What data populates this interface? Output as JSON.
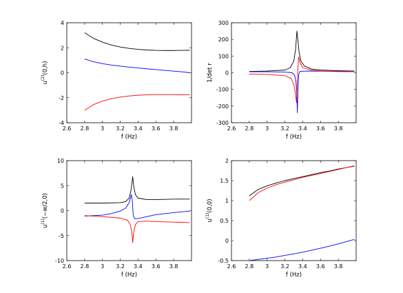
{
  "chart_data": [
    {
      "type": "line",
      "xlabel": "f (Hz)",
      "ylabel": "u^{(2)}(0,h)",
      "ylabel_parts": {
        "base": "u",
        "sup": "(2)",
        "rest": "(0,h)"
      },
      "xlim": [
        2.6,
        4.0
      ],
      "ylim": [
        -4,
        4
      ],
      "xticks": [
        "2.6",
        "2.8",
        "3",
        "3.2",
        "3.4",
        "3.6",
        "3.8"
      ],
      "xtick_values": [
        2.6,
        2.8,
        3.0,
        3.2,
        3.4,
        3.6,
        3.8
      ],
      "yticks": [
        "-4",
        "-2",
        "0",
        "2",
        "4"
      ],
      "ytick_values": [
        -4,
        -2,
        0,
        2,
        4
      ],
      "series": [
        {
          "color": "#000000",
          "points": [
            [
              2.8,
              3.2
            ],
            [
              2.9,
              2.75
            ],
            [
              3.0,
              2.45
            ],
            [
              3.1,
              2.22
            ],
            [
              3.2,
              2.06
            ],
            [
              3.3,
              1.95
            ],
            [
              3.4,
              1.87
            ],
            [
              3.5,
              1.82
            ],
            [
              3.6,
              1.79
            ],
            [
              3.7,
              1.78
            ],
            [
              3.8,
              1.78
            ],
            [
              3.9,
              1.79
            ],
            [
              3.98,
              1.8
            ]
          ]
        },
        {
          "color": "#0000ff",
          "points": [
            [
              2.8,
              1.1
            ],
            [
              2.9,
              0.88
            ],
            [
              3.0,
              0.73
            ],
            [
              3.1,
              0.62
            ],
            [
              3.2,
              0.53
            ],
            [
              3.3,
              0.45
            ],
            [
              3.4,
              0.38
            ],
            [
              3.5,
              0.31
            ],
            [
              3.6,
              0.25
            ],
            [
              3.7,
              0.19
            ],
            [
              3.8,
              0.13
            ],
            [
              3.9,
              0.07
            ],
            [
              3.98,
              0.0
            ]
          ]
        },
        {
          "color": "#ff0000",
          "points": [
            [
              2.8,
              -3.0
            ],
            [
              2.9,
              -2.55
            ],
            [
              3.0,
              -2.27
            ],
            [
              3.1,
              -2.08
            ],
            [
              3.2,
              -1.95
            ],
            [
              3.3,
              -1.86
            ],
            [
              3.4,
              -1.8
            ],
            [
              3.5,
              -1.77
            ],
            [
              3.6,
              -1.75
            ],
            [
              3.7,
              -1.75
            ],
            [
              3.8,
              -1.75
            ],
            [
              3.9,
              -1.76
            ],
            [
              3.98,
              -1.77
            ]
          ]
        }
      ]
    },
    {
      "type": "line",
      "xlabel": "f (Hz)",
      "ylabel": "1/det r",
      "ylabel_parts": {
        "base": "1/det r",
        "sup": "",
        "rest": ""
      },
      "xlim": [
        2.6,
        4.0
      ],
      "ylim": [
        -300,
        300
      ],
      "xticks": [
        "2.6",
        "2.8",
        "3",
        "3.2",
        "3.4",
        "3.6",
        "3.8"
      ],
      "xtick_values": [
        2.6,
        2.8,
        3.0,
        3.2,
        3.4,
        3.6,
        3.8
      ],
      "yticks": [
        "-300",
        "-200",
        "-100",
        "0",
        "100",
        "200",
        "300"
      ],
      "ytick_values": [
        -300,
        -200,
        -100,
        0,
        100,
        200,
        300
      ],
      "series": [
        {
          "color": "#000000",
          "points": [
            [
              2.8,
              8
            ],
            [
              3.0,
              10
            ],
            [
              3.2,
              16
            ],
            [
              3.26,
              30
            ],
            [
              3.3,
              70
            ],
            [
              3.32,
              140
            ],
            [
              3.335,
              250
            ],
            [
              3.345,
              200
            ],
            [
              3.36,
              120
            ],
            [
              3.38,
              70
            ],
            [
              3.42,
              40
            ],
            [
              3.5,
              22
            ],
            [
              3.6,
              16
            ],
            [
              3.8,
              12
            ],
            [
              3.98,
              10
            ]
          ]
        },
        {
          "color": "#0000ff",
          "points": [
            [
              2.8,
              6
            ],
            [
              3.0,
              6
            ],
            [
              3.2,
              4
            ],
            [
              3.28,
              0
            ],
            [
              3.31,
              -15
            ],
            [
              3.325,
              -60
            ],
            [
              3.335,
              -150
            ],
            [
              3.34,
              -240
            ],
            [
              3.345,
              -120
            ],
            [
              3.355,
              -10
            ],
            [
              3.37,
              8
            ],
            [
              3.45,
              10
            ],
            [
              3.6,
              9
            ],
            [
              3.8,
              9
            ],
            [
              3.98,
              9
            ]
          ]
        },
        {
          "color": "#ff0000",
          "points": [
            [
              2.8,
              -8
            ],
            [
              3.0,
              -10
            ],
            [
              3.2,
              -18
            ],
            [
              3.27,
              -35
            ],
            [
              3.3,
              -70
            ],
            [
              3.32,
              -130
            ],
            [
              3.33,
              -180
            ],
            [
              3.337,
              -80
            ],
            [
              3.345,
              20
            ],
            [
              3.355,
              95
            ],
            [
              3.37,
              60
            ],
            [
              3.4,
              30
            ],
            [
              3.5,
              15
            ],
            [
              3.6,
              10
            ],
            [
              3.8,
              7
            ],
            [
              3.98,
              6
            ]
          ]
        }
      ]
    },
    {
      "type": "line",
      "xlabel": "f (Hz)",
      "ylabel": "u^{(1)}(-w/2,0)",
      "ylabel_parts": {
        "base": "u",
        "sup": "(1)",
        "rest": "(−w/2,0)"
      },
      "xlim": [
        2.6,
        4.0
      ],
      "ylim": [
        -10,
        10
      ],
      "xticks": [
        "2.6",
        "2.8",
        "3",
        "3.2",
        "3.4",
        "3.6",
        "3.8"
      ],
      "xtick_values": [
        2.6,
        2.8,
        3.0,
        3.2,
        3.4,
        3.6,
        3.8
      ],
      "yticks": [
        "-10",
        "-5",
        "0",
        "5",
        "10"
      ],
      "ytick_values": [
        -10,
        -5,
        0,
        5,
        10
      ],
      "series": [
        {
          "color": "#000000",
          "points": [
            [
              2.8,
              1.5
            ],
            [
              3.0,
              1.5
            ],
            [
              3.2,
              1.6
            ],
            [
              3.26,
              1.8
            ],
            [
              3.3,
              2.5
            ],
            [
              3.32,
              4.0
            ],
            [
              3.34,
              6.8
            ],
            [
              3.35,
              5.0
            ],
            [
              3.37,
              3.2
            ],
            [
              3.4,
              2.5
            ],
            [
              3.5,
              2.2
            ],
            [
              3.6,
              2.2
            ],
            [
              3.8,
              2.3
            ],
            [
              3.98,
              2.3
            ]
          ]
        },
        {
          "color": "#0000ff",
          "points": [
            [
              2.8,
              -1.1
            ],
            [
              3.0,
              -0.9
            ],
            [
              3.1,
              -0.6
            ],
            [
              3.2,
              -0.1
            ],
            [
              3.26,
              0.5
            ],
            [
              3.3,
              1.6
            ],
            [
              3.325,
              3.2
            ],
            [
              3.335,
              2.0
            ],
            [
              3.345,
              -0.8
            ],
            [
              3.36,
              -1.6
            ],
            [
              3.4,
              -1.6
            ],
            [
              3.5,
              -1.2
            ],
            [
              3.6,
              -0.8
            ],
            [
              3.8,
              -0.4
            ],
            [
              3.98,
              -0.1
            ]
          ]
        },
        {
          "color": "#ff0000",
          "points": [
            [
              2.8,
              -1.0
            ],
            [
              3.0,
              -1.2
            ],
            [
              3.2,
              -1.5
            ],
            [
              3.28,
              -1.9
            ],
            [
              3.31,
              -2.7
            ],
            [
              3.33,
              -4.2
            ],
            [
              3.34,
              -6.4
            ],
            [
              3.35,
              -4.5
            ],
            [
              3.37,
              -2.8
            ],
            [
              3.4,
              -2.2
            ],
            [
              3.5,
              -2.1
            ],
            [
              3.6,
              -2.2
            ],
            [
              3.8,
              -2.3
            ],
            [
              3.98,
              -2.4
            ]
          ]
        }
      ]
    },
    {
      "type": "line",
      "xlabel": "f (Hz)",
      "ylabel": "u^{(1)}(0,0)",
      "ylabel_parts": {
        "base": "u",
        "sup": "(1)",
        "rest": "(0,0)"
      },
      "xlim": [
        2.6,
        4.0
      ],
      "ylim": [
        -0.5,
        2
      ],
      "xticks": [
        "2.6",
        "2.8",
        "3",
        "3.2",
        "3.4",
        "3.6",
        "3.8"
      ],
      "xtick_values": [
        2.6,
        2.8,
        3.0,
        3.2,
        3.4,
        3.6,
        3.8
      ],
      "yticks": [
        "-0.5",
        "0",
        "0.5",
        "1",
        "1.5",
        "2"
      ],
      "ytick_values": [
        -0.5,
        0,
        0.5,
        1,
        1.5,
        2
      ],
      "series": [
        {
          "color": "#000000",
          "points": [
            [
              2.8,
              1.12
            ],
            [
              2.9,
              1.28
            ],
            [
              3.0,
              1.37
            ],
            [
              3.1,
              1.44
            ],
            [
              3.2,
              1.5
            ],
            [
              3.3,
              1.55
            ],
            [
              3.4,
              1.6
            ],
            [
              3.5,
              1.65
            ],
            [
              3.6,
              1.7
            ],
            [
              3.7,
              1.74
            ],
            [
              3.8,
              1.79
            ],
            [
              3.9,
              1.83
            ],
            [
              3.98,
              1.86
            ]
          ]
        },
        {
          "color": "#ff0000",
          "points": [
            [
              2.8,
              1.0
            ],
            [
              2.9,
              1.2
            ],
            [
              3.0,
              1.31
            ],
            [
              3.1,
              1.4
            ],
            [
              3.2,
              1.46
            ],
            [
              3.3,
              1.52
            ],
            [
              3.4,
              1.58
            ],
            [
              3.5,
              1.63
            ],
            [
              3.6,
              1.68
            ],
            [
              3.7,
              1.73
            ],
            [
              3.8,
              1.78
            ],
            [
              3.9,
              1.83
            ],
            [
              3.98,
              1.87
            ]
          ]
        },
        {
          "color": "#0000ff",
          "points": [
            [
              2.8,
              -0.5
            ],
            [
              2.9,
              -0.47
            ],
            [
              3.0,
              -0.44
            ],
            [
              3.1,
              -0.41
            ],
            [
              3.2,
              -0.37
            ],
            [
              3.3,
              -0.33
            ],
            [
              3.4,
              -0.29
            ],
            [
              3.5,
              -0.24
            ],
            [
              3.6,
              -0.19
            ],
            [
              3.7,
              -0.14
            ],
            [
              3.8,
              -0.08
            ],
            [
              3.9,
              -0.02
            ],
            [
              3.98,
              0.03
            ]
          ]
        }
      ]
    }
  ]
}
